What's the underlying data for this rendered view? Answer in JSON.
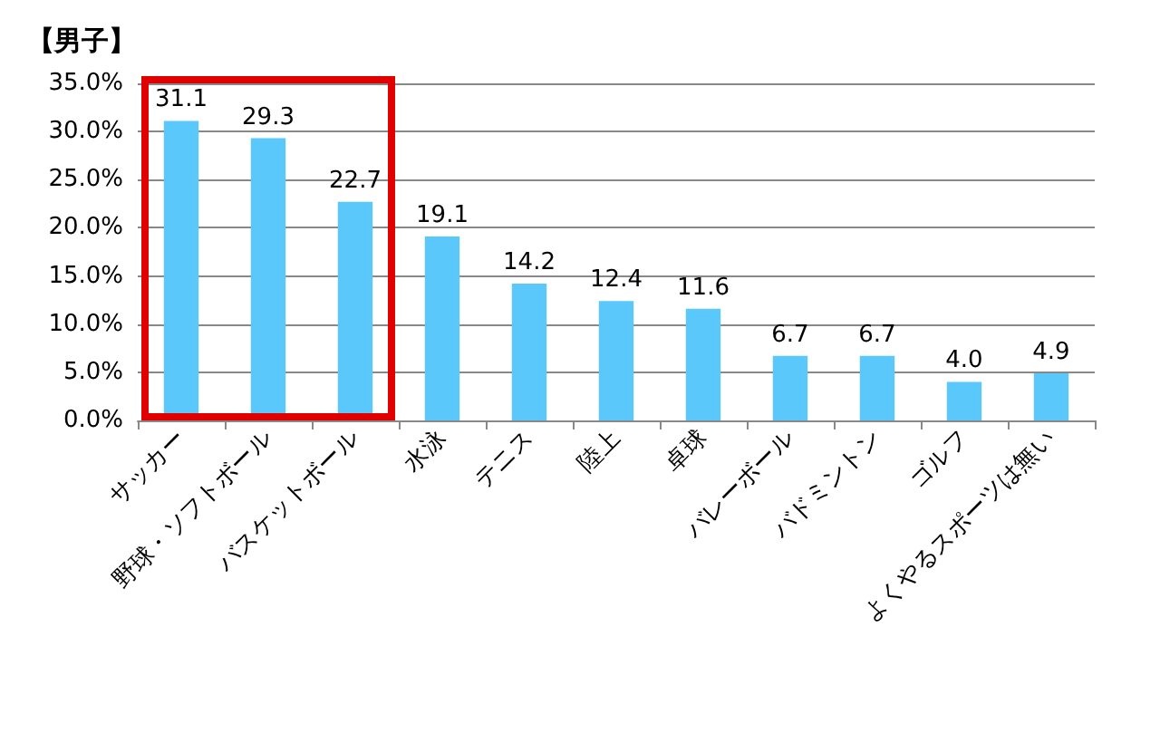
{
  "chart_data": {
    "type": "bar",
    "title": "【男子】",
    "categories": [
      "サッカー",
      "野球・ソフトボール",
      "バスケットボール",
      "水泳",
      "テニス",
      "陸上",
      "卓球",
      "バレーボール",
      "バドミントン",
      "ゴルフ",
      "よくやるスポーツは無い"
    ],
    "values": [
      31.1,
      29.3,
      22.7,
      19.1,
      14.2,
      12.4,
      11.6,
      6.7,
      6.7,
      4.0,
      4.9
    ],
    "value_labels": [
      "31.1",
      "29.3",
      "22.7",
      "19.1",
      "14.2",
      "12.4",
      "11.6",
      "6.7",
      "6.7",
      "4.0",
      "4.9"
    ],
    "color": "#5ac8fa",
    "ylim": [
      0,
      35
    ],
    "yticks": [
      {
        "value": 0,
        "label": "0.0%"
      },
      {
        "value": 5,
        "label": "5.0%"
      },
      {
        "value": 10,
        "label": "10.0%"
      },
      {
        "value": 15,
        "label": "15.0%"
      },
      {
        "value": 20,
        "label": "20.0%"
      },
      {
        "value": 25,
        "label": "25.0%"
      },
      {
        "value": 30,
        "label": "30.0%"
      },
      {
        "value": 35,
        "label": "35.0%"
      }
    ],
    "grid": "y"
  }
}
